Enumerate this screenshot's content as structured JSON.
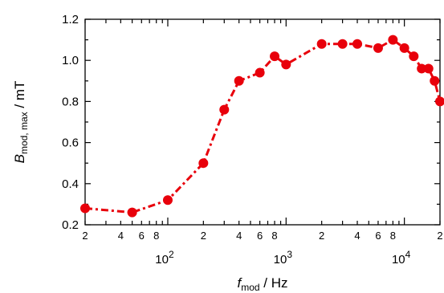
{
  "chart_data": {
    "type": "line",
    "x_scale": "log",
    "xlim": [
      20,
      20000
    ],
    "ylim": [
      0.2,
      1.2
    ],
    "grid": false,
    "series_color": "#e8000b",
    "line_style": "dash-dot",
    "marker": "circle",
    "xlabel": {
      "main": "f",
      "sub": "mod",
      "unit": " / Hz"
    },
    "ylabel": {
      "main": "B",
      "sub": "mod, max",
      "unit": " / mT"
    },
    "y_ticks": [
      0.2,
      0.4,
      0.6,
      0.8,
      1.0,
      1.2
    ],
    "y_tick_labels": [
      "0.2",
      "0.4",
      "0.6",
      "0.8",
      "1.0",
      "1.2"
    ],
    "x_major_ticks": [
      100,
      1000,
      10000
    ],
    "x_major_labels": [
      {
        "base": "10",
        "exp": "2"
      },
      {
        "base": "10",
        "exp": "3"
      },
      {
        "base": "10",
        "exp": "4"
      }
    ],
    "x_minor_labeled": [
      {
        "x": 20,
        "label": "2"
      },
      {
        "x": 40,
        "label": "4"
      },
      {
        "x": 60,
        "label": "6"
      },
      {
        "x": 80,
        "label": "8"
      },
      {
        "x": 200,
        "label": "2"
      },
      {
        "x": 400,
        "label": "4"
      },
      {
        "x": 600,
        "label": "6"
      },
      {
        "x": 800,
        "label": "8"
      },
      {
        "x": 2000,
        "label": "2"
      },
      {
        "x": 4000,
        "label": "4"
      },
      {
        "x": 6000,
        "label": "6"
      },
      {
        "x": 8000,
        "label": "8"
      },
      {
        "x": 20000,
        "label": "2"
      }
    ],
    "series": [
      {
        "x": [
          20,
          50,
          100,
          200,
          300,
          400,
          600,
          800,
          1000,
          2000,
          3000,
          4000,
          6000,
          8000,
          10000,
          12000,
          14000,
          16000,
          18000,
          20000
        ],
        "y": [
          0.28,
          0.26,
          0.32,
          0.5,
          0.76,
          0.9,
          0.94,
          1.02,
          0.98,
          1.08,
          1.08,
          1.08,
          1.06,
          1.1,
          1.06,
          1.02,
          0.96,
          0.96,
          0.9,
          0.8
        ]
      }
    ]
  }
}
